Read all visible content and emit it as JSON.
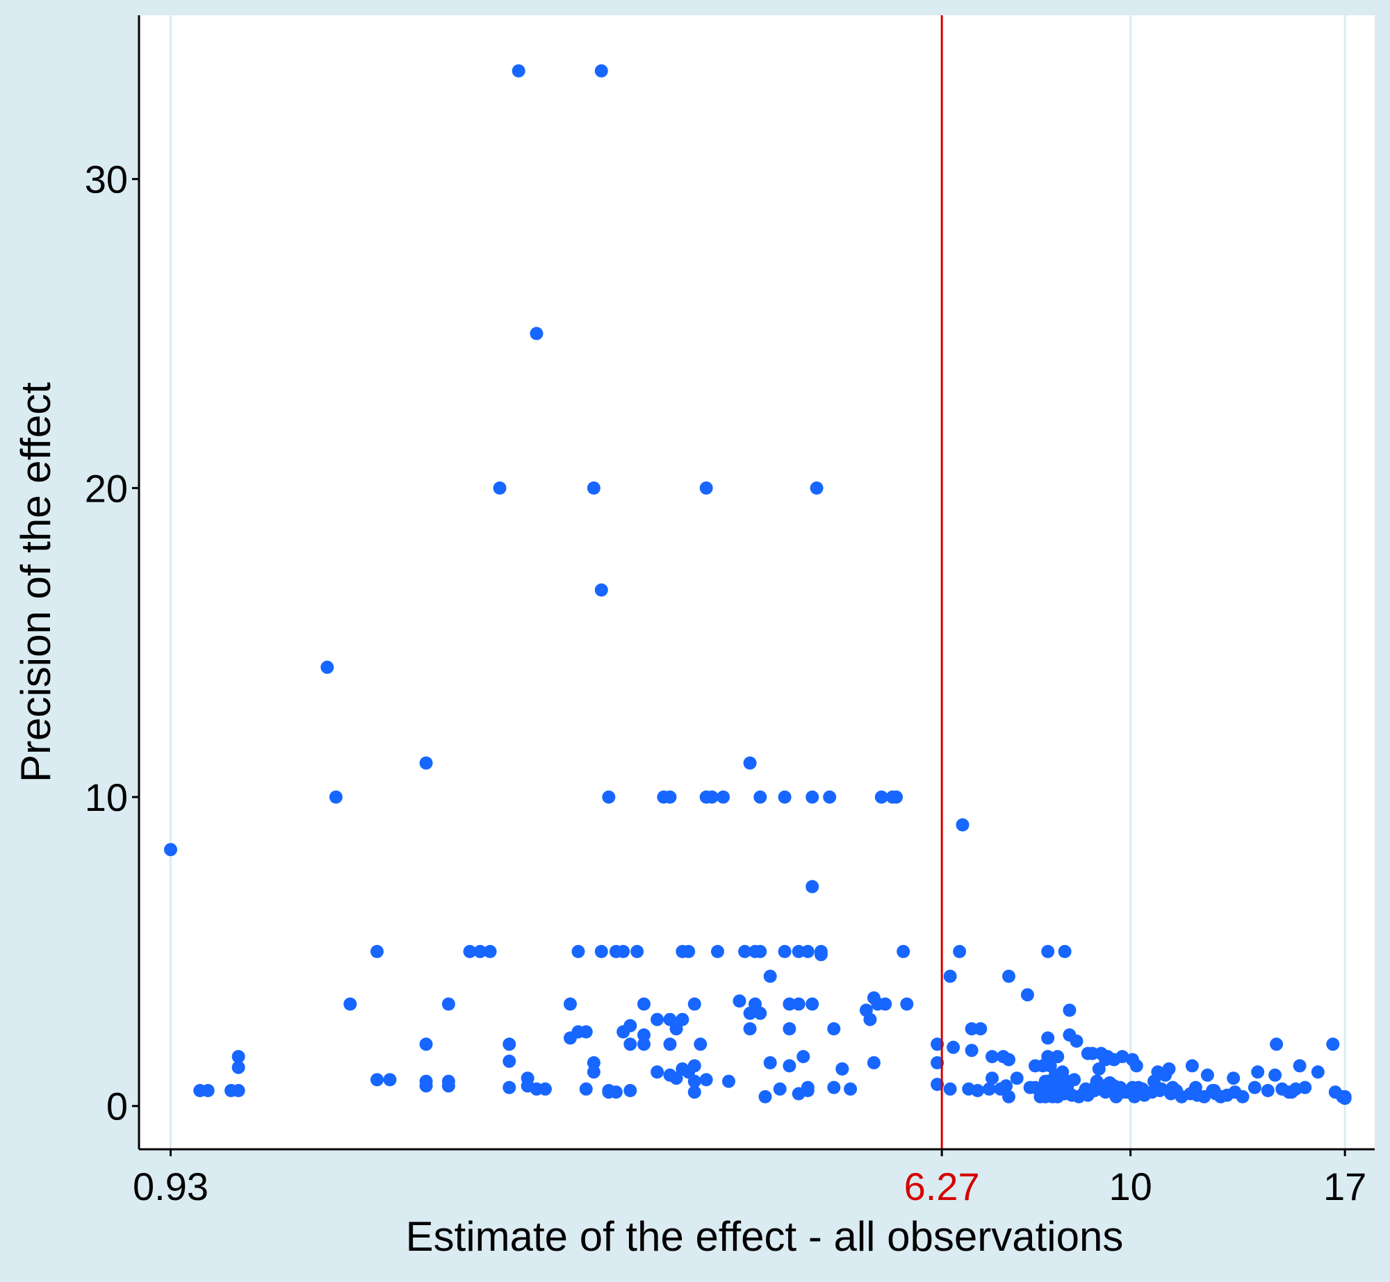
{
  "chart_data": {
    "type": "scatter",
    "title": "",
    "xlabel": "Estimate of the effect - all observations",
    "ylabel": "Precision of the effect",
    "x_scale": "log",
    "xlim": [
      0.86,
      18.3
    ],
    "ylim": [
      -1.4,
      35.3
    ],
    "x_ticks": [
      {
        "value": 0.93,
        "label": "0.93",
        "color": "#000000",
        "gridline": true
      },
      {
        "value": 6.27,
        "label": "6.27",
        "color": "#d40000",
        "gridline": false
      },
      {
        "value": 10,
        "label": "10",
        "color": "#000000",
        "gridline": true
      },
      {
        "value": 17,
        "label": "17",
        "color": "#000000",
        "gridline": true
      }
    ],
    "y_ticks": [
      0,
      10,
      20,
      30
    ],
    "grid": "vertical only",
    "reference_line": {
      "x": 6.27,
      "color": "#d40000"
    },
    "colors": {
      "points": "#1766ff",
      "reference": "#d40000",
      "background": "#dbebf2",
      "plot_background": "#ffffff",
      "gridline": "#dbebf2"
    },
    "series": [
      {
        "points": [
          [
            0.93,
            8.3
          ],
          [
            1.0,
            0.5
          ],
          [
            1.02,
            0.5
          ],
          [
            1.08,
            0.5
          ],
          [
            1.1,
            0.5
          ],
          [
            1.1,
            1.6
          ],
          [
            1.1,
            1.25
          ],
          [
            1.37,
            14.2
          ],
          [
            1.4,
            10
          ],
          [
            1.45,
            3.3
          ],
          [
            1.55,
            5
          ],
          [
            1.55,
            0.85
          ],
          [
            1.6,
            0.85
          ],
          [
            1.75,
            11.1
          ],
          [
            1.75,
            2
          ],
          [
            1.75,
            0.65
          ],
          [
            1.75,
            0.8
          ],
          [
            1.85,
            3.3
          ],
          [
            1.85,
            0.8
          ],
          [
            1.85,
            0.65
          ],
          [
            1.95,
            5
          ],
          [
            2.0,
            5
          ],
          [
            2.05,
            5
          ],
          [
            2.1,
            20
          ],
          [
            2.15,
            2
          ],
          [
            2.15,
            1.45
          ],
          [
            2.15,
            0.6
          ],
          [
            2.2,
            33.5
          ],
          [
            2.25,
            0.9
          ],
          [
            2.25,
            0.65
          ],
          [
            2.3,
            0.55
          ],
          [
            2.3,
            25
          ],
          [
            2.35,
            0.55
          ],
          [
            2.5,
            3.3
          ],
          [
            2.5,
            2.2
          ],
          [
            2.55,
            5
          ],
          [
            2.55,
            2.4
          ],
          [
            2.6,
            0.55
          ],
          [
            2.6,
            2.4
          ],
          [
            2.65,
            20
          ],
          [
            2.65,
            1.4
          ],
          [
            2.65,
            1.1
          ],
          [
            2.7,
            33.5
          ],
          [
            2.7,
            16.7
          ],
          [
            2.7,
            5
          ],
          [
            2.75,
            10
          ],
          [
            2.75,
            0.5
          ],
          [
            2.75,
            0.45
          ],
          [
            2.8,
            5
          ],
          [
            2.8,
            0.45
          ],
          [
            2.85,
            5
          ],
          [
            2.85,
            2.4
          ],
          [
            2.9,
            2.6
          ],
          [
            2.9,
            2
          ],
          [
            2.9,
            0.5
          ],
          [
            2.95,
            5
          ],
          [
            3.0,
            3.3
          ],
          [
            3.0,
            2.3
          ],
          [
            3.0,
            2
          ],
          [
            3.1,
            1.1
          ],
          [
            3.1,
            2.8
          ],
          [
            3.15,
            10
          ],
          [
            3.2,
            2
          ],
          [
            3.2,
            10
          ],
          [
            3.2,
            2.8
          ],
          [
            3.2,
            1
          ],
          [
            3.25,
            2.5
          ],
          [
            3.25,
            0.9
          ],
          [
            3.3,
            5
          ],
          [
            3.3,
            1.2
          ],
          [
            3.3,
            2.8
          ],
          [
            3.35,
            5
          ],
          [
            3.35,
            1.1
          ],
          [
            3.4,
            3.3
          ],
          [
            3.4,
            1.3
          ],
          [
            3.4,
            0.8
          ],
          [
            3.4,
            0.45
          ],
          [
            3.45,
            2
          ],
          [
            3.5,
            10
          ],
          [
            3.5,
            0.85
          ],
          [
            3.5,
            20
          ],
          [
            3.55,
            10
          ],
          [
            3.6,
            5
          ],
          [
            3.65,
            10
          ],
          [
            3.7,
            0.8
          ],
          [
            3.8,
            3.4
          ],
          [
            3.85,
            5
          ],
          [
            3.9,
            11.1
          ],
          [
            3.9,
            3
          ],
          [
            3.9,
            2.5
          ],
          [
            3.95,
            3.3
          ],
          [
            3.95,
            5
          ],
          [
            4.0,
            10
          ],
          [
            4.0,
            5
          ],
          [
            4.0,
            3
          ],
          [
            4.05,
            0.3
          ],
          [
            4.1,
            4.2
          ],
          [
            4.1,
            1.4
          ],
          [
            4.2,
            0.55
          ],
          [
            4.25,
            5
          ],
          [
            4.25,
            10
          ],
          [
            4.3,
            3.3
          ],
          [
            4.3,
            2.5
          ],
          [
            4.3,
            1.3
          ],
          [
            4.4,
            0.4
          ],
          [
            4.4,
            3.3
          ],
          [
            4.4,
            5
          ],
          [
            4.45,
            1.6
          ],
          [
            4.5,
            0.6
          ],
          [
            4.5,
            0.5
          ],
          [
            4.5,
            5
          ],
          [
            4.55,
            3.3
          ],
          [
            4.55,
            7.1
          ],
          [
            4.55,
            10
          ],
          [
            4.6,
            20
          ],
          [
            4.65,
            4.9
          ],
          [
            4.65,
            5
          ],
          [
            4.75,
            10
          ],
          [
            4.8,
            2.5
          ],
          [
            4.8,
            0.6
          ],
          [
            4.9,
            1.2
          ],
          [
            4.9,
            1.2
          ],
          [
            5.0,
            0.55
          ],
          [
            5.2,
            3.1
          ],
          [
            5.25,
            2.8
          ],
          [
            5.3,
            3.5
          ],
          [
            5.3,
            1.4
          ],
          [
            5.35,
            3.3
          ],
          [
            5.4,
            10
          ],
          [
            5.45,
            3.3
          ],
          [
            5.55,
            10
          ],
          [
            5.6,
            10
          ],
          [
            5.7,
            5
          ],
          [
            5.75,
            3.3
          ],
          [
            6.2,
            0.7
          ],
          [
            6.2,
            1.4
          ],
          [
            6.2,
            2
          ],
          [
            6.4,
            0.55
          ],
          [
            6.4,
            4.2
          ],
          [
            6.45,
            1.9
          ],
          [
            6.55,
            5
          ],
          [
            6.6,
            9.1
          ],
          [
            6.7,
            0.55
          ],
          [
            6.75,
            1.8
          ],
          [
            6.75,
            2.5
          ],
          [
            6.85,
            0.5
          ],
          [
            6.9,
            2.5
          ],
          [
            7.05,
            0.55
          ],
          [
            7.1,
            0.9
          ],
          [
            7.1,
            1.6
          ],
          [
            7.25,
            0.55
          ],
          [
            7.3,
            1.6
          ],
          [
            7.35,
            0.65
          ],
          [
            7.4,
            4.2
          ],
          [
            7.4,
            1.5
          ],
          [
            7.4,
            0.3
          ],
          [
            7.55,
            0.9
          ],
          [
            7.75,
            3.6
          ],
          [
            7.8,
            0.6
          ],
          [
            7.9,
            1.3
          ],
          [
            7.9,
            0.6
          ],
          [
            8.0,
            0.3
          ],
          [
            8.0,
            0.5
          ],
          [
            8.05,
            1.3
          ],
          [
            8.05,
            0.6
          ],
          [
            8.1,
            0.3
          ],
          [
            8.1,
            0.6
          ],
          [
            8.1,
            0.8
          ],
          [
            8.15,
            2.2
          ],
          [
            8.15,
            1.6
          ],
          [
            8.15,
            0.8
          ],
          [
            8.15,
            5
          ],
          [
            8.2,
            0.4
          ],
          [
            8.2,
            0.5
          ],
          [
            8.2,
            1.3
          ],
          [
            8.25,
            0.3
          ],
          [
            8.25,
            0.55
          ],
          [
            8.25,
            0.65
          ],
          [
            8.3,
            0.8
          ],
          [
            8.3,
            1
          ],
          [
            8.3,
            0.6
          ],
          [
            8.35,
            0.3
          ],
          [
            8.35,
            1.6
          ],
          [
            8.35,
            0.45
          ],
          [
            8.45,
            0.4
          ],
          [
            8.45,
            0.55
          ],
          [
            8.45,
            1.1
          ],
          [
            8.5,
            5
          ],
          [
            8.5,
            0.4
          ],
          [
            8.55,
            0.6
          ],
          [
            8.55,
            0.8
          ],
          [
            8.6,
            0.4
          ],
          [
            8.6,
            3.1
          ],
          [
            8.6,
            2.3
          ],
          [
            8.65,
            0.35
          ],
          [
            8.7,
            0.85
          ],
          [
            8.75,
            2.1
          ],
          [
            8.8,
            0.3
          ],
          [
            8.9,
            0.4
          ],
          [
            8.95,
            0.55
          ],
          [
            9.0,
            1.7
          ],
          [
            9.0,
            0.35
          ],
          [
            9.05,
            0.45
          ],
          [
            9.1,
            1.7
          ],
          [
            9.15,
            0.5
          ],
          [
            9.15,
            0.6
          ],
          [
            9.2,
            0.8
          ],
          [
            9.2,
            0.6
          ],
          [
            9.25,
            1.2
          ],
          [
            9.3,
            1.7
          ],
          [
            9.3,
            0.55
          ],
          [
            9.35,
            0.65
          ],
          [
            9.4,
            1.5
          ],
          [
            9.4,
            0.45
          ],
          [
            9.45,
            0.5
          ],
          [
            9.45,
            1.6
          ],
          [
            9.5,
            0.75
          ],
          [
            9.55,
            0.5
          ],
          [
            9.6,
            0.65
          ],
          [
            9.6,
            1.5
          ],
          [
            9.65,
            0.3
          ],
          [
            9.7,
            0.5
          ],
          [
            9.75,
            0.6
          ],
          [
            9.8,
            1.6
          ],
          [
            9.85,
            0.45
          ],
          [
            9.9,
            0.45
          ],
          [
            9.95,
            0.45
          ],
          [
            10.0,
            0.45
          ],
          [
            10.05,
            0.6
          ],
          [
            10.05,
            1.5
          ],
          [
            10.1,
            0.3
          ],
          [
            10.15,
            1.3
          ],
          [
            10.2,
            0.6
          ],
          [
            10.25,
            0.45
          ],
          [
            10.3,
            0.55
          ],
          [
            10.35,
            0.35
          ],
          [
            10.55,
            0.45
          ],
          [
            10.6,
            0.8
          ],
          [
            10.7,
            1.1
          ],
          [
            10.75,
            0.5
          ],
          [
            10.8,
            0.55
          ],
          [
            10.9,
            1
          ],
          [
            11.0,
            1.2
          ],
          [
            11.05,
            0.4
          ],
          [
            11.1,
            0.6
          ],
          [
            11.2,
            0.5
          ],
          [
            11.35,
            0.3
          ],
          [
            11.6,
            0.4
          ],
          [
            11.65,
            1.3
          ],
          [
            11.75,
            0.6
          ],
          [
            11.8,
            0.35
          ],
          [
            12.0,
            0.3
          ],
          [
            12.1,
            1
          ],
          [
            12.25,
            0.5
          ],
          [
            12.3,
            0.5
          ],
          [
            12.35,
            0.4
          ],
          [
            12.5,
            0.3
          ],
          [
            12.7,
            0.35
          ],
          [
            12.9,
            0.9
          ],
          [
            12.95,
            0.45
          ],
          [
            13.2,
            0.3
          ],
          [
            13.6,
            0.6
          ],
          [
            13.7,
            1.1
          ],
          [
            14.05,
            0.5
          ],
          [
            14.3,
            1
          ],
          [
            14.35,
            2
          ],
          [
            14.55,
            0.55
          ],
          [
            14.8,
            0.45
          ],
          [
            14.9,
            0.45
          ],
          [
            15.05,
            0.55
          ],
          [
            15.2,
            1.3
          ],
          [
            15.4,
            0.6
          ],
          [
            15.9,
            1.1
          ],
          [
            16.5,
            2
          ],
          [
            16.6,
            0.45
          ],
          [
            16.9,
            0.3
          ],
          [
            17.0,
            0.3
          ],
          [
            17.0,
            0.25
          ]
        ]
      }
    ]
  }
}
